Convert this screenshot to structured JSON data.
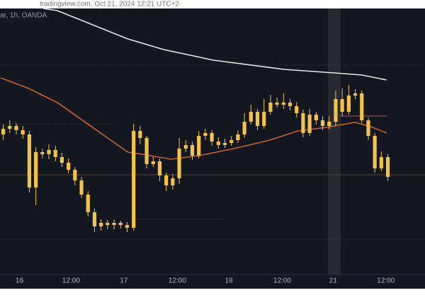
{
  "chart_data": {
    "type": "candlestick",
    "header": "tradingview.com, Oct 21, 2024 12:21 UTC+2",
    "subheader": "ar, 1h, OANDA",
    "up_color": "#f2c24a",
    "down_color": "#f2c24a",
    "xlim": [
      -0.5,
      64.7
    ],
    "ylim": [
      0,
      378
    ],
    "xticks": [
      {
        "value": 2.5,
        "label": "16"
      },
      {
        "value": 10.4,
        "label": "12:00"
      },
      {
        "value": 18.5,
        "label": "17"
      },
      {
        "value": 26.7,
        "label": "12:00"
      },
      {
        "value": 34.6,
        "label": "18"
      },
      {
        "value": 42.8,
        "label": "12:00"
      },
      {
        "value": 50.6,
        "label": "21"
      },
      {
        "value": 58.7,
        "label": "12:00"
      }
    ],
    "x": [
      0,
      1,
      2,
      3,
      4,
      5,
      6,
      7,
      8,
      9,
      10,
      11,
      12,
      13,
      14,
      15,
      16,
      17,
      18,
      19,
      20,
      21,
      22,
      23,
      24,
      25,
      26,
      27,
      28,
      29,
      30,
      31,
      32,
      33,
      34,
      35,
      36,
      37,
      38,
      39,
      40,
      41,
      42,
      43,
      44,
      45,
      46,
      47,
      48,
      49,
      50,
      51,
      52,
      53,
      54,
      55,
      56,
      57,
      58,
      59
    ],
    "open": [
      200,
      208,
      212,
      206,
      200,
      125,
      175,
      172,
      178,
      168,
      160,
      150,
      135,
      115,
      90,
      70,
      75,
      72,
      75,
      72,
      68,
      205,
      195,
      158,
      162,
      142,
      128,
      138,
      180,
      185,
      170,
      198,
      202,
      190,
      185,
      188,
      192,
      200,
      218,
      232,
      212,
      232,
      245,
      242,
      245,
      240,
      230,
      202,
      228,
      220,
      212,
      218,
      250,
      232,
      255,
      258,
      220,
      198,
      152,
      168
    ],
    "high": [
      214,
      220,
      216,
      212,
      205,
      182,
      180,
      186,
      184,
      174,
      166,
      154,
      140,
      120,
      95,
      80,
      79,
      80,
      78,
      76,
      215,
      212,
      198,
      168,
      166,
      146,
      144,
      195,
      192,
      190,
      205,
      208,
      206,
      196,
      194,
      198,
      206,
      230,
      242,
      236,
      250,
      256,
      252,
      258,
      250,
      246,
      235,
      236,
      232,
      226,
      226,
      262,
      265,
      270,
      264,
      262,
      224,
      202,
      176,
      172
    ],
    "low": [
      192,
      202,
      200,
      194,
      118,
      100,
      166,
      165,
      162,
      154,
      145,
      128,
      110,
      84,
      62,
      64,
      66,
      66,
      67,
      62,
      64,
      186,
      152,
      154,
      134,
      120,
      122,
      130,
      175,
      164,
      166,
      192,
      184,
      180,
      181,
      184,
      188,
      195,
      214,
      206,
      208,
      228,
      238,
      236,
      234,
      224,
      196,
      198,
      214,
      206,
      207,
      212,
      226,
      228,
      250,
      216,
      192,
      146,
      148,
      134
    ],
    "close": [
      208,
      212,
      206,
      200,
      125,
      175,
      172,
      178,
      168,
      160,
      150,
      135,
      115,
      90,
      70,
      75,
      72,
      75,
      72,
      68,
      205,
      195,
      158,
      162,
      142,
      128,
      138,
      180,
      185,
      170,
      198,
      202,
      190,
      185,
      188,
      192,
      200,
      218,
      232,
      212,
      232,
      245,
      242,
      245,
      240,
      230,
      202,
      228,
      220,
      212,
      218,
      250,
      232,
      255,
      258,
      220,
      198,
      152,
      168,
      140
    ],
    "lines": [
      {
        "color": "#e8e8e8",
        "x": [
          6.1,
          8.3,
          13.7,
          19.1,
          24.6,
          32.2,
          43.0,
          50.7,
          55.0,
          58.8
        ],
        "values": [
          378,
          375,
          355,
          335,
          320,
          305,
          292,
          287,
          284,
          277
        ]
      },
      {
        "color": "#c8642a",
        "x": [
          -0.4,
          3.9,
          8.3,
          13.7,
          19.1,
          21.3,
          25.7,
          30.0,
          35.4,
          40.9,
          45.2,
          49.6,
          53.9,
          56.1,
          58.8
        ],
        "values": [
          280,
          265,
          245,
          210,
          175,
          172,
          165,
          170,
          180,
          192,
          205,
          210,
          217,
          212,
          202
        ]
      }
    ]
  }
}
